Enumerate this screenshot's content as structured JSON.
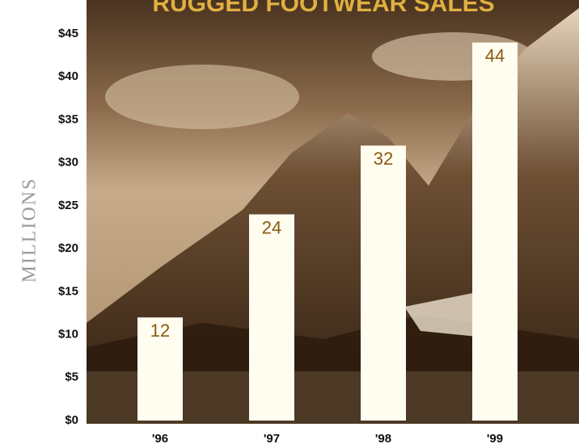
{
  "chart_data": {
    "type": "bar",
    "title": "RUGGED FOOTWEAR SALES",
    "y_label": "MILLIONS",
    "categories": [
      "'96",
      "'97",
      "'98",
      "'99"
    ],
    "values": [
      12,
      24,
      32,
      44
    ],
    "color": "#fffcf0",
    "ylim": [
      0,
      45
    ],
    "yticks": [
      {
        "value": 0,
        "label": "$0"
      },
      {
        "value": 5,
        "label": "$5"
      },
      {
        "value": 10,
        "label": "$10"
      },
      {
        "value": 15,
        "label": "$15"
      },
      {
        "value": 20,
        "label": "$20"
      },
      {
        "value": 25,
        "label": "$25"
      },
      {
        "value": 30,
        "label": "$30"
      },
      {
        "value": 35,
        "label": "$35"
      },
      {
        "value": 40,
        "label": "$40"
      },
      {
        "value": 45,
        "label": "$45"
      }
    ]
  }
}
